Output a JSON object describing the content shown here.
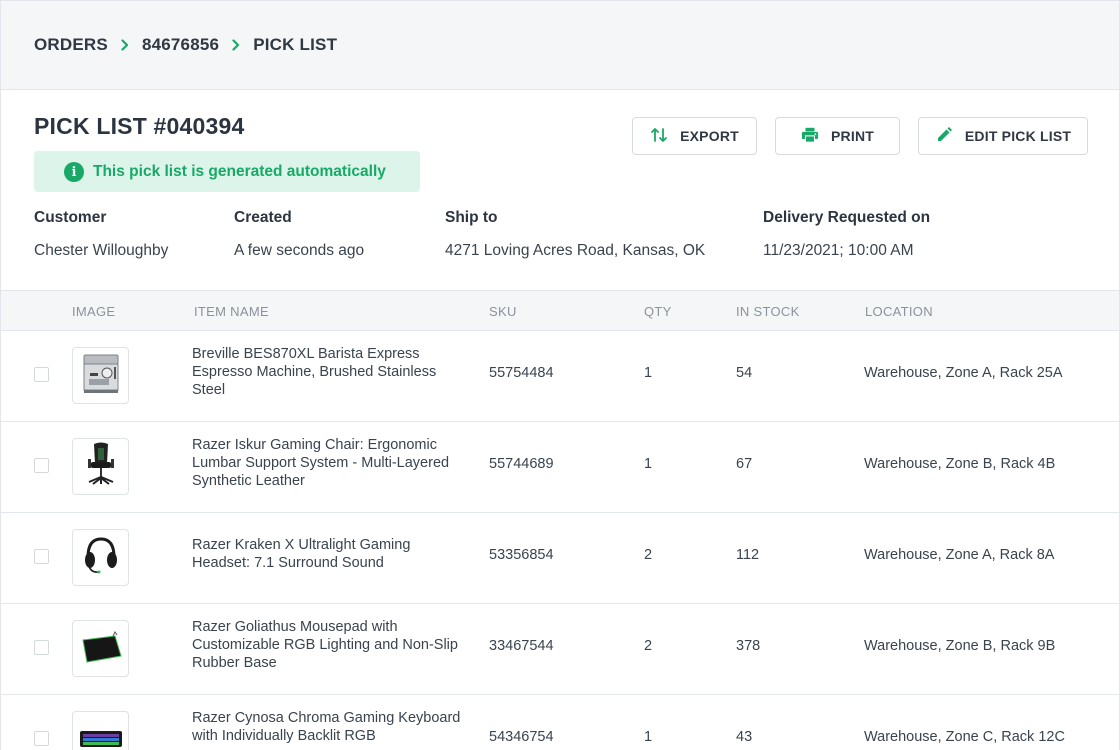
{
  "breadcrumb": [
    {
      "label": "ORDERS"
    },
    {
      "label": "84676856"
    },
    {
      "label": "PICK LIST"
    }
  ],
  "title": "PICK LIST #040394",
  "notice": "This pick list is generated automatically",
  "actions": {
    "export": "EXPORT",
    "print": "PRINT",
    "edit": "EDIT PICK LIST"
  },
  "meta": {
    "customer": {
      "label": "Customer",
      "value": "Chester Willoughby"
    },
    "created": {
      "label": "Created",
      "value": "A few seconds ago"
    },
    "ship_to": {
      "label": "Ship to",
      "value": "4271 Loving Acres Road, Kansas, OK"
    },
    "delivery": {
      "label": "Delivery Requested on",
      "value": "11/23/2021; 10:00 AM"
    }
  },
  "table": {
    "headers": {
      "image": "IMAGE",
      "item_name": "ITEM NAME",
      "sku": "SKU",
      "qty": "QTY",
      "in_stock": "IN STOCK",
      "location": "LOCATION"
    },
    "rows": [
      {
        "image_icon": "espresso-machine-icon",
        "name": "Breville BES870XL Barista Express Espresso Machine, Brushed Stainless Steel",
        "sku": "55754484",
        "qty": "1",
        "in_stock": "54",
        "location": "Warehouse, Zone A, Rack 25A"
      },
      {
        "image_icon": "gaming-chair-icon",
        "name": "Razer Iskur Gaming Chair: Ergonomic Lumbar Support System - Multi-Layered Synthetic Leather",
        "sku": "55744689",
        "qty": "1",
        "in_stock": "67",
        "location": "Warehouse, Zone B, Rack 4B"
      },
      {
        "image_icon": "headset-icon",
        "name": "Razer Kraken X Ultralight Gaming Headset: 7.1 Surround Sound",
        "sku": "53356854",
        "qty": "2",
        "in_stock": "112",
        "location": "Warehouse, Zone A, Rack 8A"
      },
      {
        "image_icon": "mousepad-icon",
        "name": "Razer Goliathus Mousepad with Customizable RGB Lighting and Non-Slip Rubber Base",
        "sku": "33467544",
        "qty": "2",
        "in_stock": "378",
        "location": "Warehouse, Zone B, Rack 9B"
      },
      {
        "image_icon": "keyboard-icon",
        "name": "Razer Cynosa Chroma Gaming Keyboard with Individually Backlit RGB",
        "sku": "54346754",
        "qty": "1",
        "in_stock": "43",
        "location": "Warehouse, Zone C, Rack 12C"
      }
    ]
  },
  "colors": {
    "accent": "#18a968",
    "notice_bg": "#dcf4e9",
    "header_bg": "#f5f6f7",
    "text": "#2b3440",
    "muted": "#8a929b"
  }
}
